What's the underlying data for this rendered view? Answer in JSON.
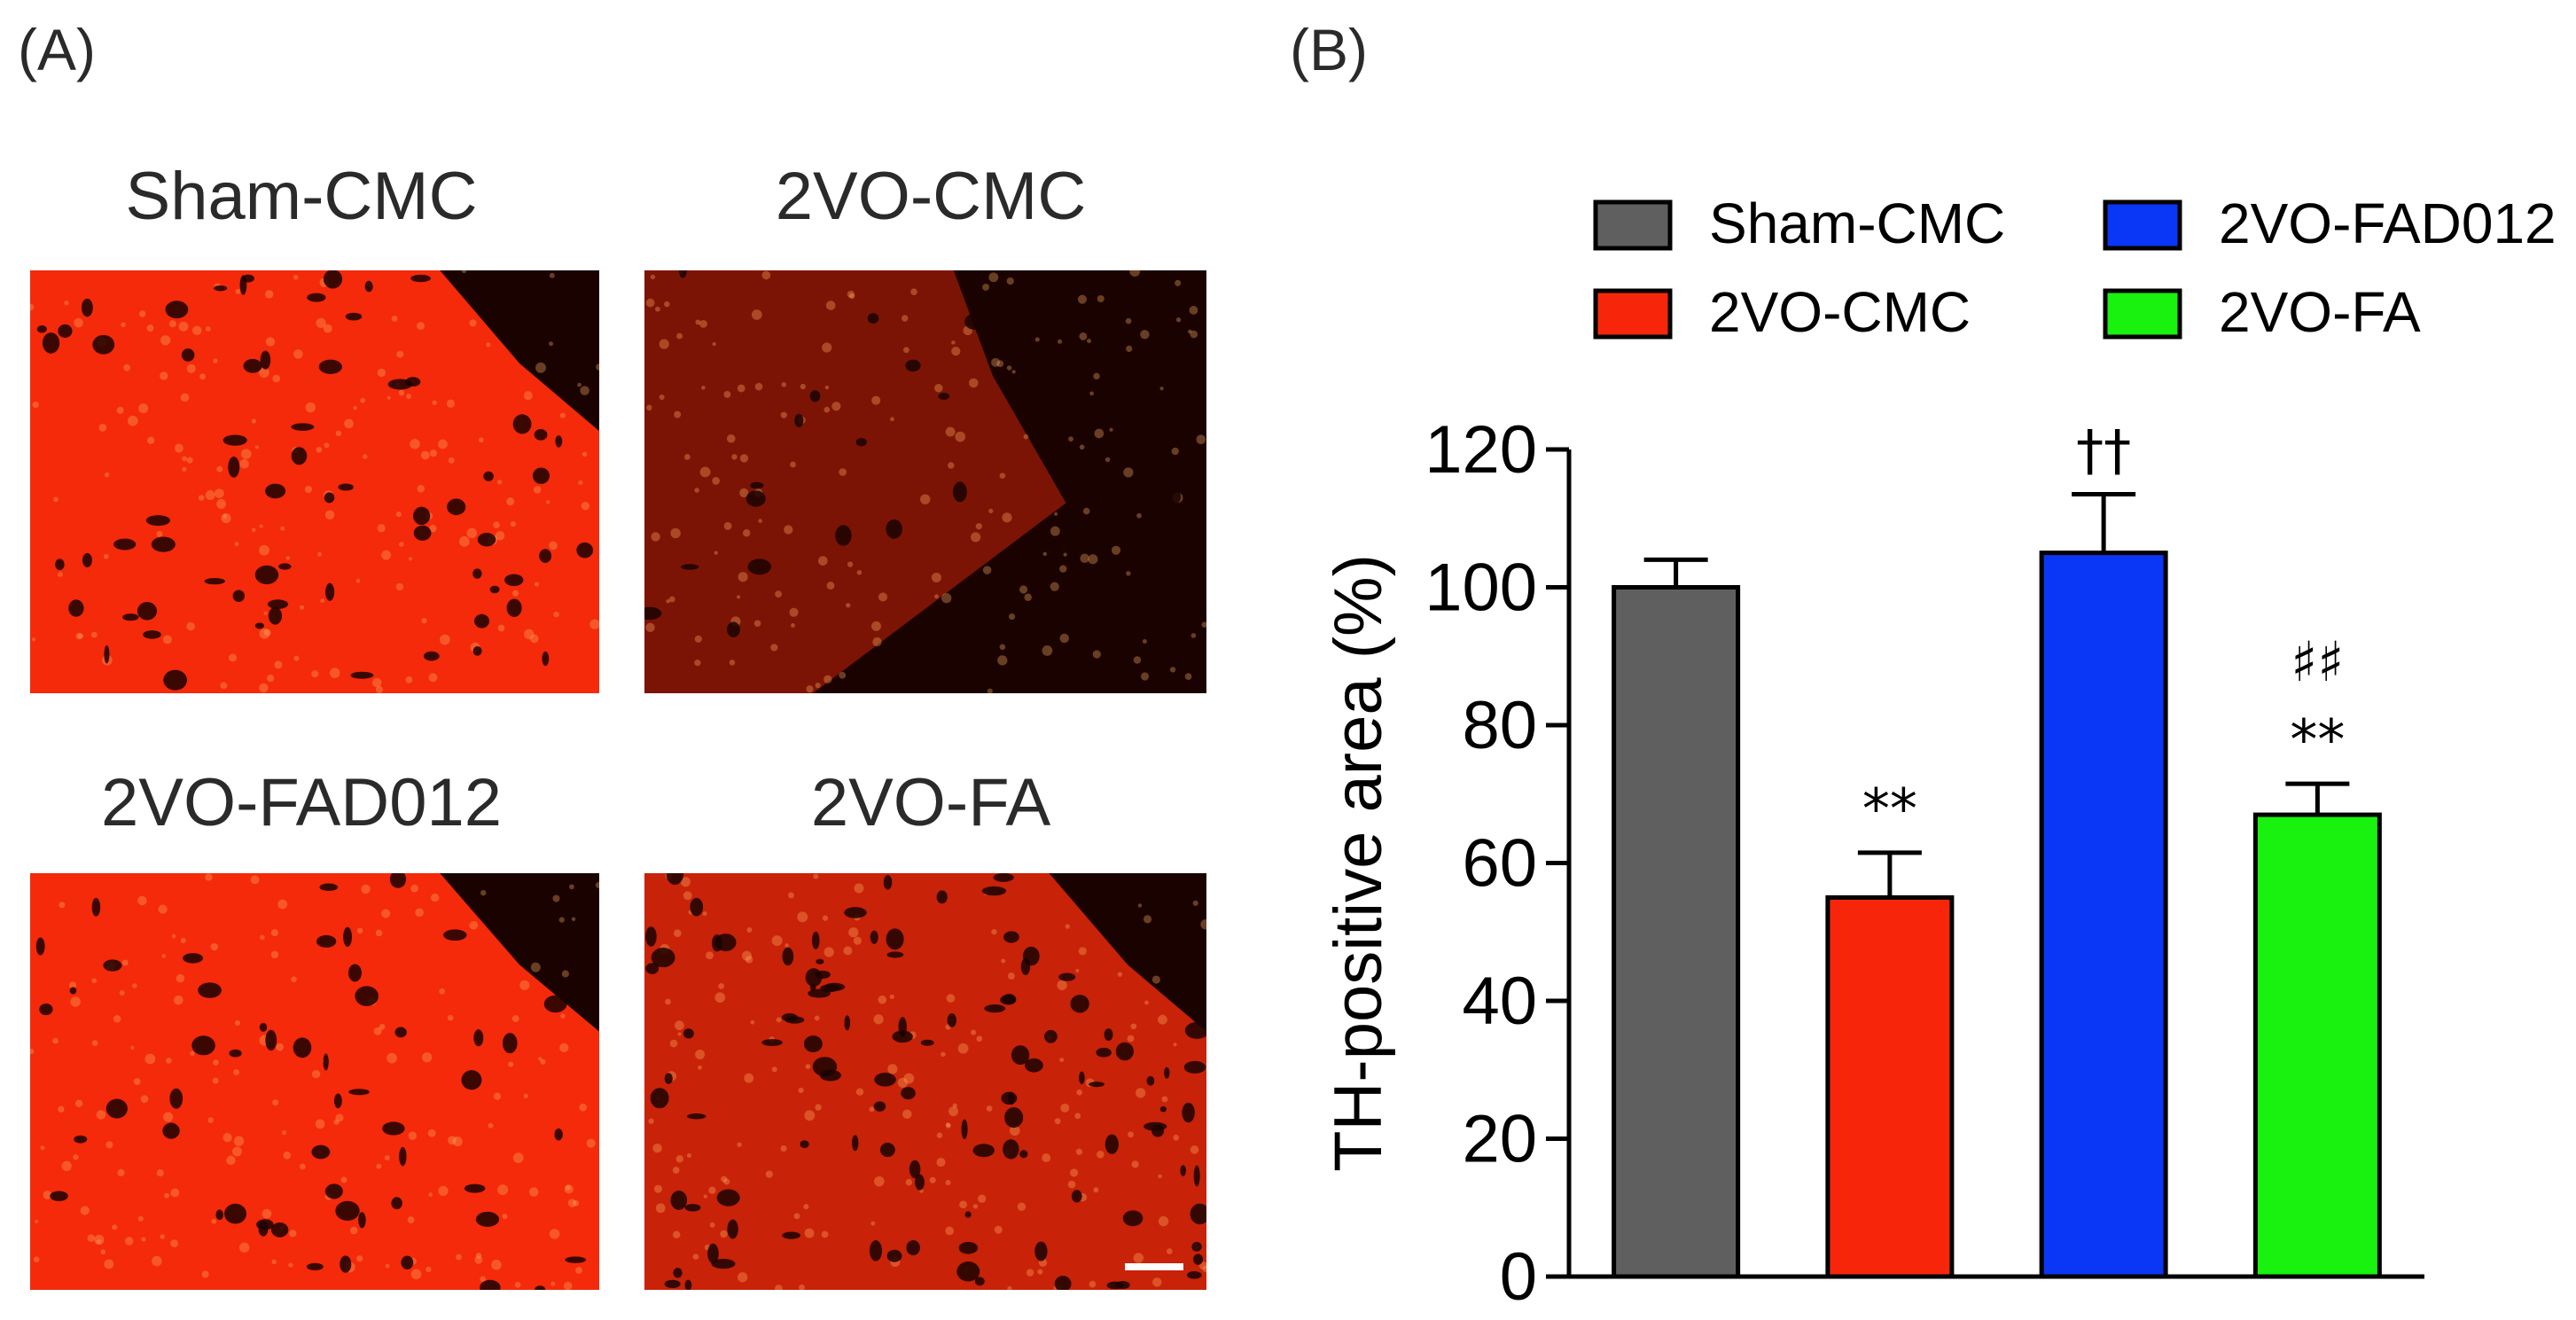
{
  "panels": {
    "a_label": "(A)",
    "b_label": "(B)"
  },
  "micrographs": [
    {
      "title": "Sham-CMC",
      "stain": "dense-red-with-dark-holes"
    },
    {
      "title": "2VO-CMC",
      "stain": "sparse-fragmented-red"
    },
    {
      "title": "2VO-FAD012",
      "stain": "dense-red-with-dark-holes"
    },
    {
      "title": "2VO-FA",
      "stain": "moderate-red-with-dark-holes"
    }
  ],
  "colors": {
    "Sham-CMC": "#5f5f5f",
    "2VO-CMC": "#f7260a",
    "2VO-FAD012": "#0a36f5",
    "2VO-FA": "#18f20e",
    "stain_red": "#f42a0a",
    "stain_dark": "#1a0200"
  },
  "chart_data": {
    "type": "bar",
    "categories": [
      "Sham-CMC",
      "2VO-CMC",
      "2VO-FAD012",
      "2VO-FA"
    ],
    "values": [
      100,
      55,
      105,
      67
    ],
    "errors": [
      4,
      6.5,
      8.5,
      4.5
    ],
    "annotations": [
      {
        "category": "2VO-CMC",
        "lines": [
          "**"
        ]
      },
      {
        "category": "2VO-FAD012",
        "lines": [
          "††"
        ]
      },
      {
        "category": "2VO-FA",
        "lines": [
          "♯♯",
          "**"
        ]
      }
    ],
    "ylabel": "TH-positive area (%)",
    "xlabel": "",
    "ylim": [
      0,
      120
    ],
    "yticks": [
      0,
      20,
      40,
      60,
      80,
      100,
      120
    ],
    "legend": [
      "Sham-CMC",
      "2VO-FAD012",
      "2VO-CMC",
      "2VO-FA"
    ],
    "legend_position": "top"
  }
}
